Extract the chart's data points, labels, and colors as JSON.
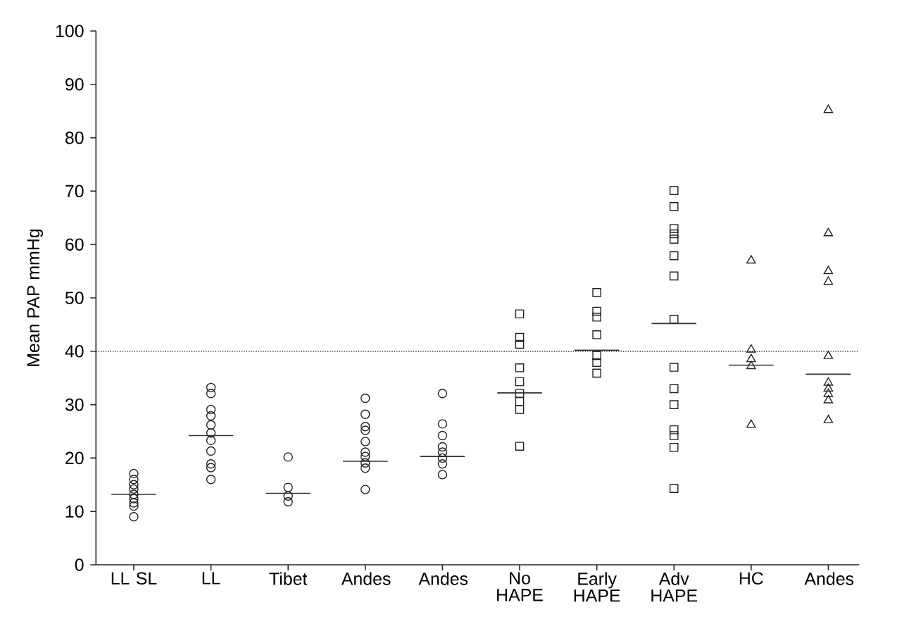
{
  "chart_data": {
    "type": "scatter",
    "ylabel": "Mean PAP mmHg",
    "categories": [
      "LL SL",
      "LL",
      "Tibet",
      "Andes",
      "Andes",
      "No HAPE",
      "Early HAPE",
      "Adv HAPE",
      "HC",
      "Andes"
    ],
    "ylim": [
      0,
      100
    ],
    "yticks": [
      0,
      10,
      20,
      30,
      40,
      50,
      60,
      70,
      80,
      90,
      100
    ],
    "series": [
      {
        "marker": "circle",
        "color": "#222222",
        "values": [
          17.1,
          33.2,
          20.2,
          31.2,
          32.1,
          null,
          null,
          null,
          null,
          null
        ]
      },
      {
        "marker": "circle",
        "color": "#222222",
        "values": [
          16.0,
          32.1,
          14.5,
          28.2,
          26.4,
          null,
          null,
          null,
          null,
          null
        ]
      },
      {
        "marker": "circle",
        "color": "#222222",
        "values": [
          15.0,
          29.1,
          12.9,
          25.9,
          24.2,
          null,
          null,
          null,
          null,
          null
        ]
      },
      {
        "marker": "circle",
        "color": "#222222",
        "values": [
          14.2,
          27.9,
          11.8,
          25.2,
          22.1,
          null,
          null,
          null,
          null,
          null
        ]
      },
      {
        "marker": "circle",
        "color": "#222222",
        "values": [
          13.2,
          26.2,
          null,
          23.1,
          21.1,
          null,
          null,
          null,
          null,
          null
        ]
      },
      {
        "marker": "circle",
        "color": "#222222",
        "values": [
          12.4,
          24.7,
          null,
          21.1,
          20.0,
          null,
          null,
          null,
          null,
          null
        ]
      },
      {
        "marker": "circle",
        "color": "#222222",
        "values": [
          11.6,
          23.3,
          null,
          20.3,
          18.9,
          null,
          null,
          null,
          null,
          null
        ]
      },
      {
        "marker": "circle",
        "color": "#222222",
        "values": [
          11.0,
          21.3,
          null,
          19.1,
          16.9,
          null,
          null,
          null,
          null,
          null
        ]
      },
      {
        "marker": "circle",
        "color": "#222222",
        "values": [
          9.0,
          18.9,
          null,
          18.1,
          null,
          null,
          null,
          null,
          null,
          null
        ]
      },
      {
        "marker": "circle",
        "color": "#222222",
        "values": [
          null,
          18.2,
          null,
          14.1,
          null,
          null,
          null,
          null,
          null,
          null
        ]
      },
      {
        "marker": "circle",
        "color": "#222222",
        "values": [
          null,
          16.0,
          null,
          null,
          null,
          null,
          null,
          null,
          null,
          null
        ]
      },
      {
        "marker": "square",
        "color": "#222222",
        "values": [
          null,
          null,
          null,
          null,
          null,
          47.0,
          51.0,
          70.1,
          null,
          null
        ]
      },
      {
        "marker": "square",
        "color": "#222222",
        "values": [
          null,
          null,
          null,
          null,
          null,
          42.6,
          47.5,
          67.1,
          null,
          null
        ]
      },
      {
        "marker": "square",
        "color": "#222222",
        "values": [
          null,
          null,
          null,
          null,
          null,
          41.3,
          46.4,
          63.0,
          null,
          null
        ]
      },
      {
        "marker": "square",
        "color": "#222222",
        "values": [
          null,
          null,
          null,
          null,
          null,
          36.9,
          43.1,
          62.0,
          null,
          null
        ]
      },
      {
        "marker": "square",
        "color": "#222222",
        "values": [
          null,
          null,
          null,
          null,
          null,
          34.3,
          39.2,
          61.0,
          null,
          null
        ]
      },
      {
        "marker": "square",
        "color": "#222222",
        "values": [
          null,
          null,
          null,
          null,
          null,
          32.1,
          37.9,
          57.9,
          null,
          null
        ]
      },
      {
        "marker": "square",
        "color": "#222222",
        "values": [
          null,
          null,
          null,
          null,
          null,
          30.6,
          35.9,
          54.1,
          null,
          null
        ]
      },
      {
        "marker": "square",
        "color": "#222222",
        "values": [
          null,
          null,
          null,
          null,
          null,
          29.1,
          null,
          46.0,
          null,
          null
        ]
      },
      {
        "marker": "square",
        "color": "#222222",
        "values": [
          null,
          null,
          null,
          null,
          null,
          22.2,
          null,
          37.0,
          null,
          null
        ]
      },
      {
        "marker": "square",
        "color": "#222222",
        "values": [
          null,
          null,
          null,
          null,
          null,
          null,
          null,
          33.0,
          null,
          null
        ]
      },
      {
        "marker": "square",
        "color": "#222222",
        "values": [
          null,
          null,
          null,
          null,
          null,
          null,
          null,
          30.0,
          null,
          null
        ]
      },
      {
        "marker": "square",
        "color": "#222222",
        "values": [
          null,
          null,
          null,
          null,
          null,
          null,
          null,
          25.3,
          null,
          null
        ]
      },
      {
        "marker": "square",
        "color": "#222222",
        "values": [
          null,
          null,
          null,
          null,
          null,
          null,
          null,
          24.2,
          null,
          null
        ]
      },
      {
        "marker": "square",
        "color": "#222222",
        "values": [
          null,
          null,
          null,
          null,
          null,
          null,
          null,
          22.0,
          null,
          null
        ]
      },
      {
        "marker": "square",
        "color": "#222222",
        "values": [
          null,
          null,
          null,
          null,
          null,
          null,
          null,
          14.3,
          null,
          null
        ]
      },
      {
        "marker": "triangle",
        "color": "#222222",
        "values": [
          null,
          null,
          null,
          null,
          null,
          null,
          null,
          null,
          57.0,
          85.2
        ]
      },
      {
        "marker": "triangle",
        "color": "#222222",
        "values": [
          null,
          null,
          null,
          null,
          null,
          null,
          null,
          null,
          40.3,
          62.1
        ]
      },
      {
        "marker": "triangle",
        "color": "#222222",
        "values": [
          null,
          null,
          null,
          null,
          null,
          null,
          null,
          null,
          38.5,
          55.0
        ]
      },
      {
        "marker": "triangle",
        "color": "#222222",
        "values": [
          null,
          null,
          null,
          null,
          null,
          null,
          null,
          null,
          37.2,
          53.0
        ]
      },
      {
        "marker": "triangle",
        "color": "#222222",
        "values": [
          null,
          null,
          null,
          null,
          null,
          null,
          null,
          null,
          26.2,
          39.1
        ]
      },
      {
        "marker": "triangle",
        "color": "#222222",
        "values": [
          null,
          null,
          null,
          null,
          null,
          null,
          null,
          null,
          null,
          34.1
        ]
      },
      {
        "marker": "triangle",
        "color": "#222222",
        "values": [
          null,
          null,
          null,
          null,
          null,
          null,
          null,
          null,
          null,
          33.0
        ]
      },
      {
        "marker": "triangle",
        "color": "#222222",
        "values": [
          null,
          null,
          null,
          null,
          null,
          null,
          null,
          null,
          null,
          32.0
        ]
      },
      {
        "marker": "triangle",
        "color": "#222222",
        "values": [
          null,
          null,
          null,
          null,
          null,
          null,
          null,
          null,
          null,
          30.8
        ]
      },
      {
        "marker": "triangle",
        "color": "#222222",
        "values": [
          null,
          null,
          null,
          null,
          null,
          null,
          null,
          null,
          null,
          27.1
        ]
      },
      {
        "type": "box",
        "color": "#333333",
        "boxes": [
          {
            "low": 13.2,
            "q1": 13.2,
            "median": 13.2,
            "q3": 13.2,
            "high": 13.2
          },
          {
            "low": 24.2,
            "q1": 24.2,
            "median": 24.2,
            "q3": 24.2,
            "high": 24.2
          },
          {
            "low": 13.4,
            "q1": 13.4,
            "median": 13.4,
            "q3": 13.4,
            "high": 13.4
          },
          {
            "low": 19.4,
            "q1": 19.4,
            "median": 19.4,
            "q3": 19.4,
            "high": 19.4
          },
          {
            "low": 20.3,
            "q1": 20.3,
            "median": 20.3,
            "q3": 20.3,
            "high": 20.3
          },
          {
            "low": 32.2,
            "q1": 32.2,
            "median": 32.2,
            "q3": 32.2,
            "high": 32.2
          },
          {
            "low": 40.2,
            "q1": 40.2,
            "median": 40.2,
            "q3": 40.2,
            "high": 40.2
          },
          {
            "low": 45.2,
            "q1": 45.2,
            "median": 45.2,
            "q3": 45.2,
            "high": 45.2
          },
          {
            "low": 37.4,
            "q1": 37.4,
            "median": 37.4,
            "q3": 37.4,
            "high": 37.4
          },
          {
            "low": 35.7,
            "q1": 35.7,
            "median": 35.7,
            "q3": 35.7,
            "high": 35.7
          }
        ]
      }
    ],
    "ref_lines": [
      {
        "axis": "y",
        "value": 40,
        "line_style": "dotted",
        "color": "#222222"
      }
    ]
  }
}
